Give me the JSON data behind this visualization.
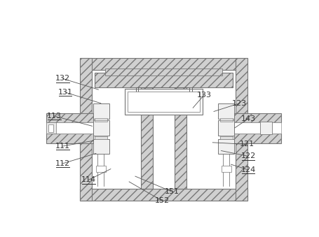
{
  "bg_color": "#ffffff",
  "ec": "#777777",
  "hatch_fc": "#d0d0d0",
  "hatch_pat": "///",
  "label_color": "#333333",
  "underlined": [
    "114",
    "112",
    "111",
    "113",
    "131",
    "132",
    "122",
    "124"
  ],
  "labels_info": {
    "152": [
      0.495,
      0.945,
      0.36,
      0.84
    ],
    "151": [
      0.535,
      0.895,
      0.385,
      0.81
    ],
    "114": [
      0.195,
      0.83,
      0.285,
      0.77
    ],
    "112": [
      0.09,
      0.74,
      0.225,
      0.685
    ],
    "111": [
      0.09,
      0.645,
      0.215,
      0.615
    ],
    "113": [
      0.055,
      0.48,
      0.21,
      0.535
    ],
    "121": [
      0.84,
      0.635,
      0.7,
      0.625
    ],
    "122": [
      0.845,
      0.7,
      0.735,
      0.67
    ],
    "124": [
      0.845,
      0.775,
      0.775,
      0.745
    ],
    "123": [
      0.81,
      0.41,
      0.705,
      0.455
    ],
    "131": [
      0.1,
      0.35,
      0.245,
      0.41
    ],
    "132": [
      0.09,
      0.275,
      0.235,
      0.335
    ],
    "133": [
      0.665,
      0.365,
      0.62,
      0.435
    ],
    "143": [
      0.845,
      0.495,
      0.79,
      0.545
    ]
  }
}
